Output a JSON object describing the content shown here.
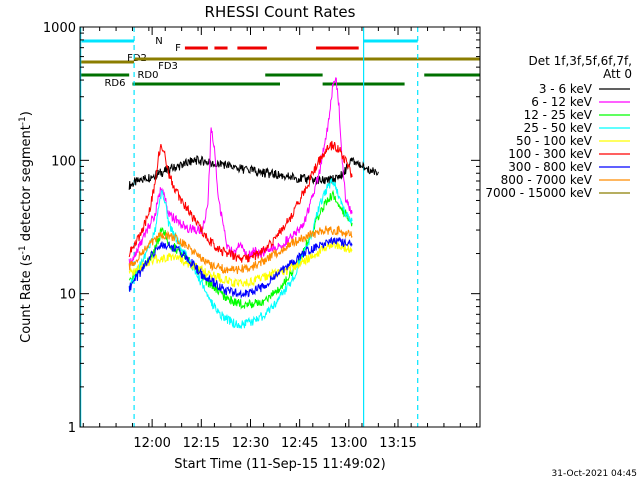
{
  "chart_data": {
    "type": "line",
    "title": "RHESSI Count Rates",
    "xlabel": "Start Time (11-Sep-15 11:49:02)",
    "ylabel_main": "Count Rate (s",
    "ylabel_sup": "-1",
    "ylabel_mid": " detector segment",
    "ylabel_sup2": "-1",
    "ylabel_end": ")",
    "yscale": "log",
    "ylim": [
      1,
      1000
    ],
    "xlim_min": [
      -11,
      111
    ],
    "x_ticks": [
      {
        "min": 11,
        "label": "12:00"
      },
      {
        "min": 26,
        "label": "12:15"
      },
      {
        "min": 41,
        "label": "12:30"
      },
      {
        "min": 56,
        "label": "12:45"
      },
      {
        "min": 71,
        "label": "13:00"
      },
      {
        "min": 86,
        "label": "13:15"
      }
    ],
    "y_ticks": [
      {
        "value": 1,
        "label": "1"
      },
      {
        "value": 10,
        "label": "10"
      },
      {
        "value": 100,
        "label": "100"
      },
      {
        "value": 1000,
        "label": "1000"
      }
    ],
    "legend_title": [
      "Det 1f,3f,5f,6f,7f,",
      "Att 0"
    ],
    "legend_position": "right",
    "series": [
      {
        "name": "3 - 6 keV",
        "color": "#000000",
        "points": [
          [
            4,
            65
          ],
          [
            8,
            72
          ],
          [
            12,
            78
          ],
          [
            16,
            85
          ],
          [
            20,
            92
          ],
          [
            24,
            100
          ],
          [
            28,
            98
          ],
          [
            30,
            90
          ],
          [
            32,
            95
          ],
          [
            36,
            88
          ],
          [
            40,
            85
          ],
          [
            46,
            80
          ],
          [
            52,
            76
          ],
          [
            58,
            72
          ],
          [
            64,
            70
          ],
          [
            68,
            74
          ],
          [
            70,
            85
          ],
          [
            72,
            100
          ],
          [
            74,
            95
          ],
          [
            76,
            85
          ],
          [
            80,
            82
          ]
        ]
      },
      {
        "name": "6 - 12 keV",
        "color": "#ff00ff",
        "points": [
          [
            4,
            17
          ],
          [
            6,
            20
          ],
          [
            8,
            25
          ],
          [
            10,
            32
          ],
          [
            12,
            40
          ],
          [
            13,
            55
          ],
          [
            14,
            62
          ],
          [
            15,
            50
          ],
          [
            16,
            40
          ],
          [
            18,
            36
          ],
          [
            20,
            33
          ],
          [
            22,
            31
          ],
          [
            24,
            30
          ],
          [
            26,
            30
          ],
          [
            28,
            45
          ],
          [
            29,
            180
          ],
          [
            30,
            120
          ],
          [
            31,
            60
          ],
          [
            32,
            40
          ],
          [
            33,
            30
          ],
          [
            34,
            22
          ],
          [
            36,
            20
          ],
          [
            38,
            24
          ],
          [
            40,
            19
          ],
          [
            42,
            21
          ],
          [
            44,
            20
          ],
          [
            46,
            21
          ],
          [
            48,
            22
          ],
          [
            50,
            23
          ],
          [
            52,
            25
          ],
          [
            54,
            27
          ],
          [
            56,
            30
          ],
          [
            58,
            38
          ],
          [
            60,
            55
          ],
          [
            62,
            80
          ],
          [
            64,
            150
          ],
          [
            65,
            200
          ],
          [
            66,
            350
          ],
          [
            67,
            420
          ],
          [
            68,
            250
          ],
          [
            69,
            100
          ],
          [
            70,
            50
          ],
          [
            72,
            40
          ]
        ]
      },
      {
        "name": "12 - 25 keV",
        "color": "#00ff00",
        "points": [
          [
            4,
            12
          ],
          [
            6,
            14
          ],
          [
            8,
            16
          ],
          [
            10,
            18
          ],
          [
            12,
            22
          ],
          [
            13,
            26
          ],
          [
            14,
            30
          ],
          [
            15,
            28
          ],
          [
            16,
            24
          ],
          [
            18,
            22
          ],
          [
            20,
            20
          ],
          [
            22,
            18
          ],
          [
            24,
            16
          ],
          [
            26,
            14
          ],
          [
            28,
            12
          ],
          [
            30,
            11
          ],
          [
            32,
            10
          ],
          [
            34,
            9
          ],
          [
            36,
            8.6
          ],
          [
            38,
            8.4
          ],
          [
            40,
            8.3
          ],
          [
            42,
            8.4
          ],
          [
            44,
            8.6
          ],
          [
            46,
            9
          ],
          [
            48,
            10
          ],
          [
            50,
            11
          ],
          [
            52,
            13
          ],
          [
            54,
            15
          ],
          [
            56,
            18
          ],
          [
            58,
            23
          ],
          [
            60,
            30
          ],
          [
            62,
            40
          ],
          [
            64,
            48
          ],
          [
            66,
            55
          ],
          [
            68,
            45
          ],
          [
            70,
            40
          ],
          [
            72,
            34
          ]
        ]
      },
      {
        "name": "25 - 50 keV",
        "color": "#00ffff",
        "points": [
          [
            4,
            11
          ],
          [
            6,
            14
          ],
          [
            8,
            18
          ],
          [
            10,
            22
          ],
          [
            12,
            30
          ],
          [
            13,
            45
          ],
          [
            14,
            62
          ],
          [
            15,
            48
          ],
          [
            16,
            34
          ],
          [
            18,
            27
          ],
          [
            20,
            22
          ],
          [
            22,
            18
          ],
          [
            24,
            15
          ],
          [
            26,
            12
          ],
          [
            28,
            9.5
          ],
          [
            30,
            8
          ],
          [
            32,
            7
          ],
          [
            34,
            6.4
          ],
          [
            36,
            6
          ],
          [
            38,
            5.9
          ],
          [
            40,
            6
          ],
          [
            42,
            6.2
          ],
          [
            44,
            6.6
          ],
          [
            46,
            7.2
          ],
          [
            48,
            8.2
          ],
          [
            50,
            9.5
          ],
          [
            52,
            11
          ],
          [
            54,
            13
          ],
          [
            56,
            17
          ],
          [
            58,
            22
          ],
          [
            60,
            30
          ],
          [
            62,
            45
          ],
          [
            64,
            60
          ],
          [
            66,
            70
          ],
          [
            68,
            55
          ],
          [
            70,
            40
          ],
          [
            72,
            35
          ]
        ]
      },
      {
        "name": "50 - 100 keV",
        "color": "#ffff00",
        "points": [
          [
            4,
            14
          ],
          [
            8,
            16
          ],
          [
            12,
            18
          ],
          [
            16,
            19
          ],
          [
            20,
            18
          ],
          [
            24,
            16
          ],
          [
            28,
            14
          ],
          [
            32,
            13
          ],
          [
            36,
            12
          ],
          [
            40,
            12
          ],
          [
            44,
            13
          ],
          [
            48,
            14
          ],
          [
            52,
            15
          ],
          [
            56,
            17
          ],
          [
            60,
            19
          ],
          [
            64,
            22
          ],
          [
            66,
            24
          ],
          [
            68,
            23
          ],
          [
            70,
            22
          ],
          [
            72,
            21
          ]
        ]
      },
      {
        "name": "100 - 300 keV",
        "color": "#ff0000",
        "points": [
          [
            4,
            20
          ],
          [
            6,
            24
          ],
          [
            8,
            30
          ],
          [
            10,
            40
          ],
          [
            12,
            70
          ],
          [
            13,
            110
          ],
          [
            14,
            130
          ],
          [
            15,
            105
          ],
          [
            16,
            80
          ],
          [
            18,
            60
          ],
          [
            20,
            50
          ],
          [
            22,
            42
          ],
          [
            24,
            35
          ],
          [
            26,
            30
          ],
          [
            28,
            26
          ],
          [
            30,
            23
          ],
          [
            32,
            21
          ],
          [
            34,
            20
          ],
          [
            36,
            19
          ],
          [
            38,
            18.5
          ],
          [
            40,
            18.5
          ],
          [
            42,
            19
          ],
          [
            44,
            20
          ],
          [
            46,
            22
          ],
          [
            48,
            25
          ],
          [
            50,
            29
          ],
          [
            52,
            34
          ],
          [
            54,
            40
          ],
          [
            56,
            50
          ],
          [
            58,
            62
          ],
          [
            60,
            80
          ],
          [
            62,
            100
          ],
          [
            64,
            120
          ],
          [
            66,
            130
          ],
          [
            68,
            120
          ],
          [
            70,
            100
          ],
          [
            72,
            75
          ]
        ]
      },
      {
        "name": "300 - 800 keV",
        "color": "#0000ff",
        "points": [
          [
            4,
            11
          ],
          [
            6,
            13
          ],
          [
            8,
            15
          ],
          [
            10,
            18
          ],
          [
            12,
            21
          ],
          [
            14,
            23
          ],
          [
            16,
            23
          ],
          [
            18,
            22
          ],
          [
            20,
            20
          ],
          [
            22,
            18
          ],
          [
            24,
            16
          ],
          [
            26,
            14
          ],
          [
            28,
            13
          ],
          [
            30,
            12
          ],
          [
            32,
            11
          ],
          [
            34,
            10.5
          ],
          [
            36,
            10
          ],
          [
            38,
            10
          ],
          [
            40,
            10.2
          ],
          [
            42,
            10.5
          ],
          [
            44,
            11
          ],
          [
            46,
            12
          ],
          [
            48,
            13
          ],
          [
            50,
            14.5
          ],
          [
            52,
            16
          ],
          [
            54,
            17.5
          ],
          [
            56,
            19
          ],
          [
            58,
            20.5
          ],
          [
            60,
            21.5
          ],
          [
            62,
            22.5
          ],
          [
            64,
            23.5
          ],
          [
            66,
            24.5
          ],
          [
            68,
            25
          ],
          [
            70,
            24
          ],
          [
            72,
            23
          ]
        ]
      },
      {
        "name": "800 - 7000 keV",
        "color": "#ff8c00",
        "points": [
          [
            4,
            16
          ],
          [
            6,
            18
          ],
          [
            8,
            20
          ],
          [
            10,
            23
          ],
          [
            12,
            26
          ],
          [
            14,
            28
          ],
          [
            16,
            27
          ],
          [
            18,
            26
          ],
          [
            20,
            24
          ],
          [
            22,
            22
          ],
          [
            24,
            20
          ],
          [
            26,
            18
          ],
          [
            28,
            17
          ],
          [
            30,
            16
          ],
          [
            32,
            15.5
          ],
          [
            34,
            15
          ],
          [
            36,
            15
          ],
          [
            38,
            15.2
          ],
          [
            40,
            15.5
          ],
          [
            42,
            16
          ],
          [
            44,
            17
          ],
          [
            46,
            18
          ],
          [
            48,
            19.5
          ],
          [
            50,
            21
          ],
          [
            52,
            22.5
          ],
          [
            54,
            24
          ],
          [
            56,
            25.5
          ],
          [
            58,
            27
          ],
          [
            60,
            28
          ],
          [
            62,
            29
          ],
          [
            64,
            30
          ],
          [
            66,
            30
          ],
          [
            68,
            30
          ],
          [
            70,
            28
          ],
          [
            72,
            27
          ]
        ]
      },
      {
        "name": "7000 - 15000 keV",
        "color": "#8b7d00",
        "points": []
      }
    ],
    "states": [
      {
        "label": "N",
        "color": "#00e5ff",
        "segments": [
          [
            -10.5,
            5.5
          ],
          [
            75.5,
            92
          ]
        ]
      },
      {
        "label": "F",
        "color": "#ee0000",
        "segments": [
          [
            21,
            28
          ],
          [
            30,
            34
          ],
          [
            37,
            46
          ],
          [
            61,
            74
          ]
        ]
      },
      {
        "label": "FD2",
        "color": "#8b7d00",
        "segments": [
          [
            -11,
            5.5
          ]
        ]
      },
      {
        "label": "FD3",
        "color": "#8b7d00",
        "segments": [
          [
            5.5,
            111
          ]
        ]
      },
      {
        "label": "RD0",
        "color": "#007000",
        "segments": [
          [
            -11,
            4
          ],
          [
            45.5,
            63
          ],
          [
            94,
            111
          ]
        ]
      },
      {
        "label": "RD6",
        "color": "#007000",
        "segments": [
          [
            5,
            50
          ],
          [
            63,
            88
          ]
        ]
      }
    ],
    "vlines_min": [
      -10.8,
      5.5,
      75.5,
      92
    ],
    "footer_date": "31-Oct-2021 04:45"
  }
}
